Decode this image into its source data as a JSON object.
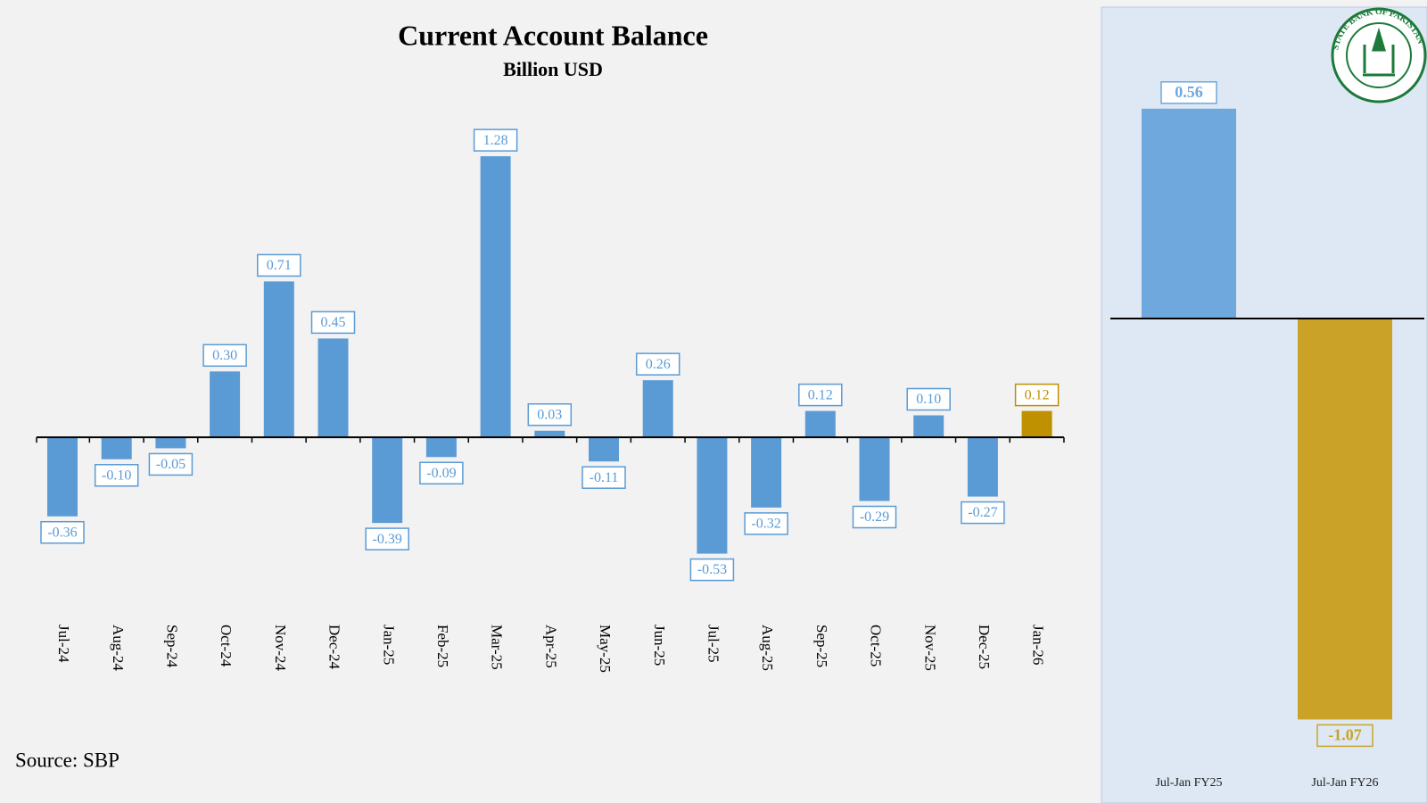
{
  "chart_data": [
    {
      "type": "bar",
      "title": "Current Account Balance",
      "subtitle": "Billion USD",
      "categories": [
        "Jul-24",
        "Aug-24",
        "Sep-24",
        "Oct-24",
        "Nov-24",
        "Dec-24",
        "Jan-25",
        "Feb-25",
        "Mar-25",
        "Apr-25",
        "May-25",
        "Jun-25",
        "Jul-25",
        "Aug-25",
        "Sep-25",
        "Oct-25",
        "Nov-25",
        "Dec-25",
        "Jan-26"
      ],
      "values": [
        -0.36,
        -0.1,
        -0.05,
        0.3,
        0.71,
        0.45,
        -0.39,
        -0.09,
        1.28,
        0.03,
        -0.11,
        0.26,
        -0.53,
        -0.32,
        0.12,
        -0.29,
        0.1,
        -0.27,
        0.12
      ],
      "value_labels": [
        "-0.36",
        "-0.10",
        "-0.05",
        "0.30",
        "0.71",
        "0.45",
        "-0.39",
        "-0.09",
        "1.28",
        "0.03",
        "-0.11",
        "0.26",
        "-0.53",
        "-0.32",
        "0.12",
        "-0.29",
        "0.10",
        "-0.27",
        "0.12"
      ],
      "colors": [
        "#5b9bd5",
        "#5b9bd5",
        "#5b9bd5",
        "#5b9bd5",
        "#5b9bd5",
        "#5b9bd5",
        "#5b9bd5",
        "#5b9bd5",
        "#5b9bd5",
        "#5b9bd5",
        "#5b9bd5",
        "#5b9bd5",
        "#5b9bd5",
        "#5b9bd5",
        "#5b9bd5",
        "#5b9bd5",
        "#5b9bd5",
        "#5b9bd5",
        "#bf9000"
      ],
      "ylim": [
        -0.8,
        1.5
      ]
    },
    {
      "type": "bar",
      "categories": [
        "Jul-Jan FY25",
        "Jul-Jan FY26"
      ],
      "values": [
        0.56,
        -1.07
      ],
      "value_labels": [
        "0.56",
        "-1.07"
      ],
      "colors": [
        "#6fa8dc",
        "#c9a227"
      ],
      "ylim": [
        -1.2,
        0.7
      ]
    }
  ],
  "source": "Source: SBP",
  "logo_text": "STATE BANK OF PAKISTAN"
}
